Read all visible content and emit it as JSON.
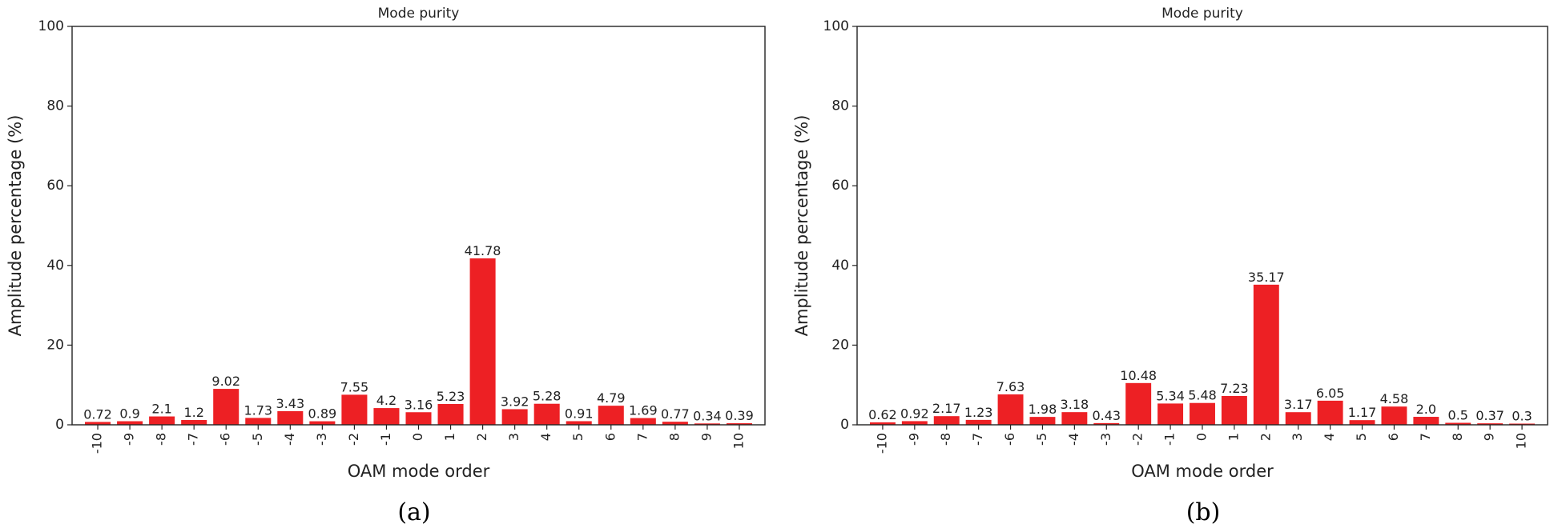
{
  "chart_data": [
    {
      "type": "bar",
      "title": "Mode purity",
      "xlabel": "OAM mode order",
      "ylabel": "Amplitude percentage (%)",
      "ylim": [
        0,
        100
      ],
      "yticks": [
        "0",
        "20",
        "40",
        "60",
        "80",
        "100"
      ],
      "categories": [
        "-10",
        "-9",
        "-8",
        "-7",
        "-6",
        "-5",
        "-4",
        "-3",
        "-2",
        "-1",
        "0",
        "1",
        "2",
        "3",
        "4",
        "5",
        "6",
        "7",
        "8",
        "9",
        "10"
      ],
      "values": [
        0.72,
        0.9,
        2.1,
        1.2,
        9.02,
        1.73,
        3.43,
        0.89,
        7.55,
        4.2,
        3.16,
        5.23,
        41.78,
        3.92,
        5.28,
        0.91,
        4.79,
        1.69,
        0.77,
        0.34,
        0.39
      ],
      "labels": [
        "0.72",
        "0.9",
        "2.1",
        "1.2",
        "9.02",
        "1.73",
        "3.43",
        "0.89",
        "7.55",
        "4.2",
        "3.16",
        "5.23",
        "41.78",
        "3.92",
        "5.28",
        "0.91",
        "4.79",
        "1.69",
        "0.77",
        "0.34",
        "0.39"
      ],
      "bar_color": "#ed2024",
      "caption": "(a)"
    },
    {
      "type": "bar",
      "title": "Mode purity",
      "xlabel": "OAM mode order",
      "ylabel": "Amplitude percentage (%)",
      "ylim": [
        0,
        100
      ],
      "yticks": [
        "0",
        "20",
        "40",
        "60",
        "80",
        "100"
      ],
      "categories": [
        "-10",
        "-9",
        "-8",
        "-7",
        "-6",
        "-5",
        "-4",
        "-3",
        "-2",
        "-1",
        "0",
        "1",
        "2",
        "3",
        "4",
        "5",
        "6",
        "7",
        "8",
        "9",
        "10"
      ],
      "values": [
        0.62,
        0.92,
        2.17,
        1.23,
        7.63,
        1.98,
        3.18,
        0.43,
        10.48,
        5.34,
        5.48,
        7.23,
        35.17,
        3.17,
        6.05,
        1.17,
        4.58,
        2.0,
        0.5,
        0.37,
        0.3
      ],
      "labels": [
        "0.62",
        "0.92",
        "2.17",
        "1.23",
        "7.63",
        "1.98",
        "3.18",
        "0.43",
        "10.48",
        "5.34",
        "5.48",
        "7.23",
        "35.17",
        "3.17",
        "6.05",
        "1.17",
        "4.58",
        "2.0",
        "0.5",
        "0.37",
        "0.3"
      ],
      "bar_color": "#ed2024",
      "caption": "(b)"
    }
  ]
}
